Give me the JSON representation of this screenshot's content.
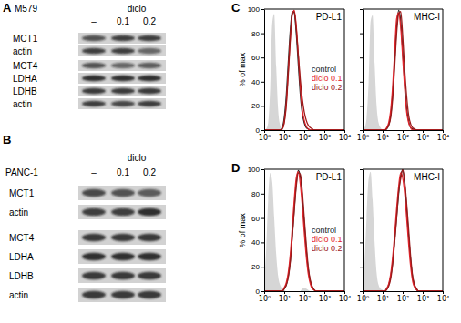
{
  "blots": [
    {
      "panel_label": "A",
      "cell_line": "M579",
      "treatment": "diclo",
      "lanes": [
        "–",
        "0.1",
        "0.2"
      ],
      "rows": [
        {
          "protein": "MCT1",
          "bands": [
            0.7,
            0.8,
            0.8
          ]
        },
        {
          "protein": "actin",
          "bands": [
            0.8,
            0.8,
            0.6
          ]
        },
        {
          "protein": "MCT4",
          "bands": [
            0.7,
            0.6,
            0.65
          ]
        },
        {
          "protein": "LDHA",
          "bands": [
            0.9,
            0.9,
            0.9
          ]
        },
        {
          "protein": "LDHB",
          "bands": [
            0.85,
            0.85,
            0.85
          ]
        },
        {
          "protein": "actin",
          "bands": [
            0.8,
            0.75,
            0.8
          ]
        }
      ]
    },
    {
      "panel_label": "B",
      "cell_line": "PANC-1",
      "treatment": "diclo",
      "lanes": [
        "–",
        "0.1",
        "0.2"
      ],
      "rows": [
        {
          "protein": "MCT1",
          "bands": [
            0.75,
            0.7,
            0.65
          ]
        },
        {
          "protein": "actin",
          "bands": [
            0.8,
            0.8,
            0.9
          ]
        },
        {
          "protein": "MCT4",
          "bands": [
            0.85,
            0.85,
            0.85
          ]
        },
        {
          "protein": "LDHA",
          "bands": [
            0.9,
            0.9,
            0.9
          ]
        },
        {
          "protein": "LDHB",
          "bands": [
            0.85,
            0.85,
            0.85
          ]
        },
        {
          "protein": "actin",
          "bands": [
            0.85,
            0.85,
            0.85
          ]
        }
      ]
    }
  ],
  "chart_data": [
    {
      "type": "line",
      "panel_label": "C",
      "title": "PD-L1",
      "y_label": "% of max",
      "log": "x",
      "legend": "right",
      "x": [
        1,
        1.26,
        1.58,
        2,
        2.51,
        3.16,
        3.98,
        5.01,
        6.31,
        7.94,
        10,
        12.6,
        15.8,
        20,
        25.1,
        31.6,
        39.8,
        50.1,
        63.1,
        79.4,
        100,
        126,
        158,
        200,
        251,
        316,
        398,
        501,
        631,
        794,
        1000,
        3162,
        10000
      ],
      "xlim": [
        1,
        10000
      ],
      "xticks": [
        {
          "value": 1,
          "label": "10⁰"
        },
        {
          "value": 10,
          "label": "10¹"
        },
        {
          "value": 100,
          "label": "10²"
        },
        {
          "value": 1000,
          "label": "10³"
        },
        {
          "value": 10000,
          "label": "10⁴"
        }
      ],
      "ylim": [
        0,
        100
      ],
      "yticks": [
        0,
        20,
        40,
        60,
        80,
        100
      ],
      "series": [
        {
          "type": "area",
          "color": "#d6d6d6",
          "values": [
            0,
            1,
            6,
            35,
            88,
            96,
            52,
            16,
            4,
            1,
            0,
            0,
            0,
            0,
            0,
            0,
            0,
            0,
            0,
            0,
            0,
            0,
            0,
            0,
            0,
            0,
            0,
            0,
            0,
            0,
            0,
            0,
            0
          ]
        },
        {
          "name": "control",
          "color": "#222222",
          "values": [
            0,
            0,
            0,
            0,
            0,
            0,
            0,
            0,
            0,
            2,
            10,
            28,
            55,
            82,
            98,
            97,
            80,
            55,
            30,
            14,
            6,
            2,
            1,
            0,
            0,
            0,
            0,
            0,
            0,
            0,
            0,
            0,
            0
          ]
        },
        {
          "name": "diclo 0.1",
          "color": "#e3242b",
          "values": [
            0,
            0,
            0,
            0,
            0,
            0,
            0,
            0,
            0,
            1,
            7,
            22,
            48,
            76,
            95,
            99,
            86,
            62,
            36,
            17,
            8,
            3,
            1,
            0,
            0,
            0,
            0,
            0,
            0,
            0,
            0,
            0,
            0
          ]
        },
        {
          "name": "diclo 0.2",
          "color": "#9e1a1a",
          "values": [
            0,
            0,
            0,
            0,
            0,
            0,
            0,
            0,
            0,
            1,
            6,
            20,
            45,
            74,
            96,
            98,
            84,
            63,
            42,
            26,
            15,
            8,
            4,
            2,
            1,
            0,
            0,
            0,
            0,
            0,
            0,
            0,
            0
          ]
        }
      ]
    },
    {
      "type": "line",
      "title": "MHC-I",
      "log": "x",
      "tick_labels": "x",
      "x": [
        1,
        1.26,
        1.58,
        2,
        2.51,
        3.16,
        3.98,
        5.01,
        6.31,
        7.94,
        10,
        12.6,
        15.8,
        20,
        25.1,
        31.6,
        39.8,
        50.1,
        63.1,
        79.4,
        100,
        126,
        158,
        200,
        251,
        316,
        398,
        501,
        631,
        794,
        1000,
        3162,
        10000
      ],
      "xlim": [
        1,
        10000
      ],
      "xticks": [
        {
          "value": 1,
          "label": "10⁰"
        },
        {
          "value": 10,
          "label": "10¹"
        },
        {
          "value": 100,
          "label": "10²"
        },
        {
          "value": 1000,
          "label": "10³"
        },
        {
          "value": 10000,
          "label": "10⁴"
        }
      ],
      "ylim": [
        0,
        100
      ],
      "yticks": [
        0,
        20,
        40,
        60,
        80,
        100
      ],
      "series": [
        {
          "type": "area",
          "color": "#d6d6d6",
          "values": [
            0,
            2,
            10,
            40,
            90,
            95,
            55,
            20,
            6,
            2,
            0,
            0,
            0,
            0,
            0,
            0,
            0,
            0,
            0,
            0,
            0,
            0,
            0,
            0,
            0,
            0,
            0,
            0,
            0,
            0,
            0,
            0,
            0
          ]
        },
        {
          "color": "#222222",
          "values": [
            0,
            0,
            0,
            0,
            0,
            0,
            0,
            0,
            0,
            0,
            0,
            0,
            1,
            4,
            12,
            30,
            58,
            85,
            99,
            90,
            65,
            38,
            18,
            7,
            2,
            1,
            0,
            0,
            0,
            0,
            0,
            0,
            0
          ]
        },
        {
          "color": "#e3242b",
          "values": [
            0,
            0,
            0,
            0,
            0,
            0,
            0,
            0,
            0,
            0,
            0,
            0,
            2,
            6,
            16,
            36,
            65,
            92,
            97,
            85,
            60,
            34,
            15,
            6,
            2,
            0,
            0,
            0,
            0,
            0,
            0,
            0,
            0
          ]
        },
        {
          "color": "#9e1a1a",
          "values": [
            0,
            0,
            0,
            0,
            0,
            0,
            0,
            0,
            0,
            0,
            0,
            0,
            1,
            4,
            10,
            26,
            52,
            80,
            96,
            98,
            78,
            50,
            28,
            12,
            5,
            2,
            1,
            0,
            0,
            0,
            0,
            0,
            0
          ]
        }
      ]
    },
    {
      "type": "line",
      "panel_label": "D",
      "title": "PD-L1",
      "y_label": "% of max",
      "log": "x",
      "legend": "right",
      "x": [
        1,
        1.26,
        1.58,
        2,
        2.51,
        3.16,
        3.98,
        5.01,
        6.31,
        7.94,
        10,
        12.6,
        15.8,
        20,
        25.1,
        31.6,
        39.8,
        50.1,
        63.1,
        79.4,
        100,
        126,
        158,
        200,
        251,
        316,
        398,
        501,
        631,
        794,
        1000,
        3162,
        10000
      ],
      "xlim": [
        1,
        10000
      ],
      "xticks": [
        {
          "value": 1,
          "label": "10⁰"
        },
        {
          "value": 10,
          "label": "10¹"
        },
        {
          "value": 100,
          "label": "10²"
        },
        {
          "value": 1000,
          "label": "10³"
        },
        {
          "value": 10000,
          "label": "10⁴"
        }
      ],
      "ylim": [
        0,
        100
      ],
      "yticks": [
        0,
        20,
        40,
        60,
        80,
        100
      ],
      "series": [
        {
          "type": "area",
          "color": "#d6d6d6",
          "values": [
            8,
            35,
            75,
            97,
            90,
            60,
            30,
            12,
            5,
            2,
            1,
            0,
            0,
            0,
            0,
            0,
            0,
            0,
            0,
            2,
            3,
            2,
            1,
            0,
            0,
            0,
            0,
            0,
            0,
            0,
            0,
            0,
            0
          ]
        },
        {
          "name": "control",
          "color": "#222222",
          "values": [
            0,
            0,
            0,
            0,
            0,
            0,
            0,
            0,
            0,
            0,
            2,
            5,
            12,
            25,
            45,
            68,
            88,
            99,
            94,
            78,
            55,
            34,
            18,
            8,
            3,
            1,
            0,
            0,
            0,
            0,
            0,
            0,
            0
          ]
        },
        {
          "name": "diclo 0.1",
          "color": "#e3242b",
          "values": [
            0,
            0,
            0,
            0,
            0,
            0,
            0,
            0,
            0,
            0,
            3,
            7,
            15,
            30,
            52,
            75,
            93,
            98,
            88,
            70,
            48,
            28,
            14,
            6,
            2,
            1,
            0,
            0,
            0,
            0,
            0,
            0,
            0
          ]
        },
        {
          "name": "diclo 0.2",
          "color": "#9e1a1a",
          "values": [
            0,
            0,
            0,
            0,
            0,
            0,
            0,
            0,
            0,
            0,
            2,
            5,
            11,
            24,
            44,
            66,
            86,
            97,
            96,
            82,
            60,
            38,
            20,
            9,
            4,
            1,
            0,
            0,
            0,
            0,
            0,
            0,
            0
          ]
        }
      ]
    },
    {
      "type": "line",
      "title": "MHC-I",
      "log": "x",
      "tick_labels": "x",
      "x": [
        1,
        1.26,
        1.58,
        2,
        2.51,
        3.16,
        3.98,
        5.01,
        6.31,
        7.94,
        10,
        12.6,
        15.8,
        20,
        25.1,
        31.6,
        39.8,
        50.1,
        63.1,
        79.4,
        100,
        126,
        158,
        200,
        251,
        316,
        398,
        501,
        631,
        794,
        1000,
        3162,
        10000
      ],
      "xlim": [
        1,
        10000
      ],
      "xticks": [
        {
          "value": 1,
          "label": "10⁰"
        },
        {
          "value": 10,
          "label": "10¹"
        },
        {
          "value": 100,
          "label": "10²"
        },
        {
          "value": 1000,
          "label": "10³"
        },
        {
          "value": 10000,
          "label": "10⁴"
        }
      ],
      "ylim": [
        0,
        100
      ],
      "yticks": [
        0,
        20,
        40,
        60,
        80,
        100
      ],
      "series": [
        {
          "type": "area",
          "color": "#d6d6d6",
          "values": [
            5,
            25,
            60,
            92,
            98,
            75,
            40,
            15,
            5,
            2,
            1,
            0,
            0,
            0,
            0,
            0,
            0,
            0,
            0,
            0,
            0,
            0,
            0,
            0,
            0,
            0,
            0,
            0,
            0,
            0,
            0,
            0,
            0
          ]
        },
        {
          "color": "#222222",
          "values": [
            0,
            0,
            0,
            0,
            0,
            0,
            0,
            0,
            0,
            0,
            0,
            0,
            2,
            5,
            12,
            24,
            42,
            62,
            80,
            95,
            99,
            88,
            68,
            45,
            25,
            11,
            4,
            1,
            0,
            0,
            0,
            0,
            0
          ]
        },
        {
          "color": "#e3242b",
          "values": [
            0,
            0,
            0,
            0,
            0,
            0,
            0,
            0,
            0,
            0,
            0,
            0,
            2,
            6,
            14,
            28,
            47,
            68,
            86,
            97,
            93,
            80,
            60,
            38,
            20,
            8,
            3,
            1,
            0,
            0,
            0,
            0,
            0
          ]
        },
        {
          "color": "#9e1a1a",
          "values": [
            0,
            0,
            0,
            0,
            0,
            0,
            0,
            0,
            0,
            0,
            0,
            0,
            1,
            4,
            10,
            22,
            40,
            60,
            82,
            92,
            100,
            90,
            72,
            50,
            28,
            12,
            5,
            2,
            0,
            0,
            0,
            0,
            0
          ]
        }
      ]
    }
  ]
}
